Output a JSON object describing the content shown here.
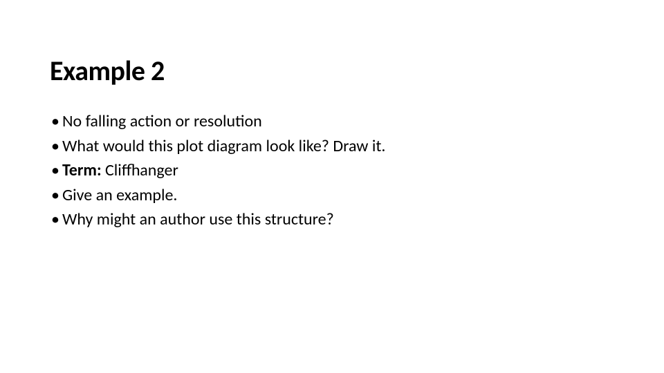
{
  "slide": {
    "title": "Example 2",
    "bullets": [
      {
        "text": "No falling action or resolution",
        "bold_prefix": ""
      },
      {
        "text": "What would this plot diagram look like? Draw it.",
        "bold_prefix": ""
      },
      {
        "text": "Cliffhanger",
        "bold_prefix": "Term: "
      },
      {
        "text": "Give an example.",
        "bold_prefix": ""
      },
      {
        "text": "Why might an author use this structure?",
        "bold_prefix": ""
      }
    ]
  },
  "style": {
    "background_color": "#ffffff",
    "text_color": "#000000",
    "title_fontsize": 40,
    "title_fontweight": 700,
    "body_fontsize": 24,
    "bullet_glyph": "•",
    "font_family": "Calibri"
  }
}
